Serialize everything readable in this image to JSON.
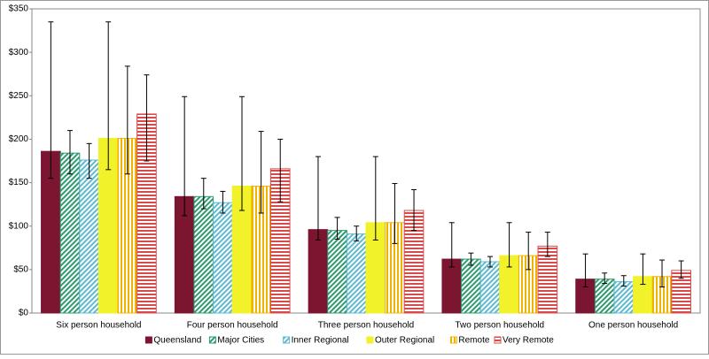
{
  "chart_data": {
    "type": "bar",
    "categories": [
      "Six person household",
      "Four person household",
      "Three person household",
      "Two person household",
      "One person household"
    ],
    "series": [
      {
        "name": "Queensland",
        "color": "#7b1530",
        "pattern": "solid",
        "values": [
          186,
          134,
          96,
          62,
          39
        ],
        "lower": [
          155,
          112,
          84,
          53,
          30
        ],
        "upper": [
          335,
          249,
          180,
          104,
          68
        ]
      },
      {
        "name": "Major Cities",
        "color": "#2e9a6e",
        "pattern": "diagonal",
        "values": [
          184,
          134,
          95,
          62,
          39
        ],
        "lower": [
          160,
          120,
          85,
          55,
          34
        ],
        "upper": [
          210,
          155,
          110,
          69,
          46
        ]
      },
      {
        "name": "Inner Regional",
        "color": "#5fb9d0",
        "pattern": "diagonal",
        "values": [
          176,
          127,
          91,
          59,
          36
        ],
        "lower": [
          155,
          115,
          83,
          53,
          31
        ],
        "upper": [
          195,
          140,
          100,
          65,
          43
        ]
      },
      {
        "name": "Outer Regional",
        "color": "#f2f22a",
        "pattern": "solid",
        "values": [
          201,
          146,
          104,
          66,
          42
        ],
        "lower": [
          165,
          118,
          84,
          53,
          33
        ],
        "upper": [
          335,
          249,
          180,
          104,
          68
        ]
      },
      {
        "name": "Remote",
        "color": "#f0b400",
        "pattern": "vertical",
        "values": [
          201,
          146,
          104,
          66,
          42
        ],
        "lower": [
          160,
          115,
          80,
          50,
          30
        ],
        "upper": [
          284,
          209,
          149,
          93,
          61
        ]
      },
      {
        "name": "Very Remote",
        "color": "#d94a4a",
        "pattern": "horizontal",
        "values": [
          229,
          166,
          118,
          77,
          49
        ],
        "lower": [
          175,
          128,
          95,
          65,
          40
        ],
        "upper": [
          274,
          200,
          142,
          93,
          60
        ]
      }
    ],
    "ylim": [
      0,
      350
    ],
    "yticks": [
      {
        "value": 0,
        "label": "$0"
      },
      {
        "value": 50,
        "label": "$50"
      },
      {
        "value": 100,
        "label": "$100"
      },
      {
        "value": 150,
        "label": "$150"
      },
      {
        "value": 200,
        "label": "$200"
      },
      {
        "value": 250,
        "label": "$250"
      },
      {
        "value": 300,
        "label": "$300"
      },
      {
        "value": 350,
        "label": "$350"
      }
    ],
    "grid": false,
    "legend": "bottom"
  }
}
